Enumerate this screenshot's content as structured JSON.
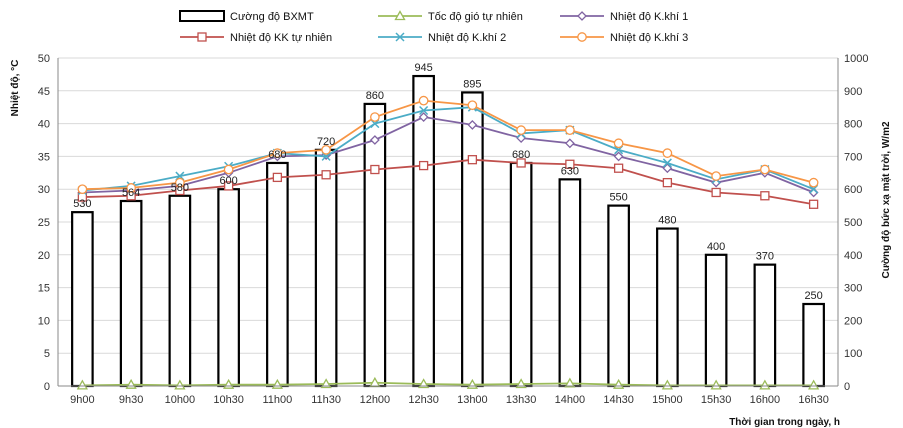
{
  "chart_data": {
    "type": "bar",
    "title": "",
    "xlabel": "Thời gian trong ngày, h",
    "ylabel": "Nhiệt độ, °C",
    "y2label": "Cường độ bức xạ mặt trời, W/m2",
    "ylim": [
      0,
      50
    ],
    "y2lim": [
      0,
      1000
    ],
    "yticks": [
      0,
      5,
      10,
      15,
      20,
      25,
      30,
      35,
      40,
      45,
      50
    ],
    "y2ticks": [
      0,
      100,
      200,
      300,
      400,
      500,
      600,
      700,
      800,
      900,
      1000
    ],
    "grid": true,
    "legend_position": "top",
    "categories": [
      "9h00",
      "9h30",
      "10h00",
      "10h30",
      "11h00",
      "11h30",
      "12h00",
      "12h30",
      "13h00",
      "13h30",
      "14h00",
      "14h30",
      "15h00",
      "15h30",
      "16h00",
      "16h30"
    ],
    "bar_series": {
      "name": "Cường độ BXMT",
      "axis": "right",
      "values": [
        530,
        564,
        580,
        600,
        680,
        720,
        860,
        945,
        895,
        680,
        630,
        550,
        480,
        400,
        370,
        250
      ],
      "color": "#000000"
    },
    "series": [
      {
        "name": "Tốc độ gió tự nhiên",
        "axis": "left",
        "marker": "triangle",
        "color": "#9bbb59",
        "values": [
          0.1,
          0.2,
          0.1,
          0.2,
          0.2,
          0.3,
          0.5,
          0.3,
          0.2,
          0.3,
          0.4,
          0.2,
          0.1,
          0.1,
          0.1,
          0.1
        ]
      },
      {
        "name": "Nhiệt độ K.khí 1",
        "axis": "left",
        "marker": "diamond",
        "color": "#8064a2",
        "values": [
          29.5,
          29.8,
          30.5,
          32.5,
          35.0,
          35.2,
          37.5,
          41.0,
          39.8,
          37.8,
          37.0,
          35.0,
          33.2,
          31.0,
          32.5,
          29.5
        ]
      },
      {
        "name": "Nhiệt độ KK tự nhiên",
        "axis": "left",
        "marker": "square",
        "color": "#c0504d",
        "values": [
          28.8,
          29.0,
          29.8,
          30.5,
          31.8,
          32.2,
          33.0,
          33.6,
          34.5,
          34.0,
          33.8,
          33.2,
          31.0,
          29.5,
          29.0,
          27.7
        ]
      },
      {
        "name": "Nhiệt độ K.khí 2",
        "axis": "left",
        "marker": "x",
        "color": "#4bacc6",
        "values": [
          29.8,
          30.5,
          32.0,
          33.5,
          35.5,
          35.0,
          40.0,
          42.0,
          42.5,
          38.5,
          39.0,
          36.0,
          34.0,
          31.5,
          33.0,
          30.0
        ]
      },
      {
        "name": "Nhiệt độ K.khí 3",
        "axis": "left",
        "marker": "circle",
        "color": "#f79646",
        "values": [
          30.0,
          30.2,
          31.0,
          33.0,
          35.5,
          36.0,
          41.0,
          43.5,
          42.8,
          39.0,
          39.0,
          37.0,
          35.5,
          32.0,
          33.0,
          31.0
        ]
      }
    ]
  }
}
